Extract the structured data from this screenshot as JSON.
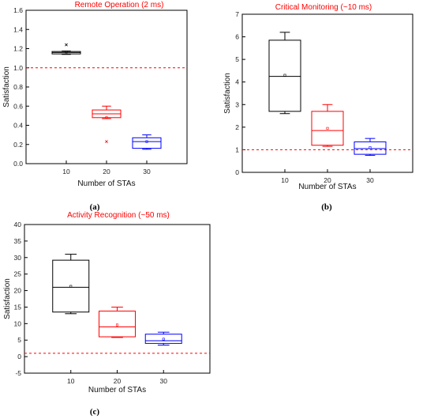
{
  "chart_data": [
    {
      "type": "box",
      "panel_label": "(a)",
      "title": "Remote Operation (2 ms)",
      "xlabel": "Number of STAs",
      "ylabel": "Satisfaction",
      "ylim": [
        0,
        1.6
      ],
      "yticks": [
        "0.0",
        "0.2",
        "0.4",
        "0.6",
        "0.8",
        "1.0",
        "1.2",
        "1.4",
        "1.6"
      ],
      "reference_line": 1.0,
      "grid": false,
      "colors": {
        "title": "#ff0000",
        "reference": "#ff0000"
      },
      "series": [
        {
          "x": "10",
          "color": "#000000",
          "whisker_low": 1.14,
          "q1": 1.145,
          "median": 1.16,
          "q3": 1.17,
          "whisker_high": 1.175,
          "mean": 1.165,
          "outliers": [
            1.24
          ]
        },
        {
          "x": "20",
          "color": "#ff0000",
          "whisker_low": 0.47,
          "q1": 0.48,
          "median": 0.52,
          "q3": 0.56,
          "whisker_high": 0.6,
          "mean": 0.48,
          "outliers": [
            0.23
          ]
        },
        {
          "x": "30",
          "color": "#0000ff",
          "whisker_low": 0.15,
          "q1": 0.16,
          "median": 0.23,
          "q3": 0.27,
          "whisker_high": 0.3,
          "mean": 0.23,
          "outliers": []
        }
      ]
    },
    {
      "type": "box",
      "panel_label": "(b)",
      "title": "Critical Monitoring (~10 ms)",
      "xlabel": "Number of STAs",
      "ylabel": "Satisfaction",
      "ylim": [
        0,
        7
      ],
      "yticks": [
        "0",
        "1",
        "2",
        "3",
        "4",
        "5",
        "6",
        "7"
      ],
      "reference_line": 1.0,
      "grid": false,
      "colors": {
        "title": "#ff0000",
        "reference": "#ff0000"
      },
      "series": [
        {
          "x": "10",
          "color": "#000000",
          "whisker_low": 2.6,
          "q1": 2.7,
          "median": 4.25,
          "q3": 5.85,
          "whisker_high": 6.2,
          "mean": 4.3,
          "outliers": []
        },
        {
          "x": "20",
          "color": "#ff0000",
          "whisker_low": 1.15,
          "q1": 1.2,
          "median": 1.85,
          "q3": 2.7,
          "whisker_high": 3.0,
          "mean": 1.95,
          "outliers": []
        },
        {
          "x": "30",
          "color": "#0000ff",
          "whisker_low": 0.75,
          "q1": 0.8,
          "median": 1.05,
          "q3": 1.35,
          "whisker_high": 1.5,
          "mean": 1.1,
          "outliers": []
        }
      ]
    },
    {
      "type": "box",
      "panel_label": "(c)",
      "title": "Activity Recognition (~50 ms)",
      "xlabel": "Number of STAs",
      "ylabel": "Satisfaction",
      "ylim": [
        -5,
        40
      ],
      "yticks": [
        "-5",
        "0",
        "5",
        "10",
        "15",
        "20",
        "25",
        "30",
        "35",
        "40"
      ],
      "reference_line": 1.0,
      "grid": false,
      "colors": {
        "title": "#ff0000",
        "reference": "#ff0000"
      },
      "series": [
        {
          "x": "10",
          "color": "#000000",
          "whisker_low": 13.0,
          "q1": 13.5,
          "median": 21.0,
          "q3": 29.2,
          "whisker_high": 31.0,
          "mean": 21.3,
          "outliers": []
        },
        {
          "x": "20",
          "color": "#ff0000",
          "whisker_low": 5.8,
          "q1": 6.0,
          "median": 9.0,
          "q3": 13.8,
          "whisker_high": 15.0,
          "mean": 9.6,
          "outliers": []
        },
        {
          "x": "30",
          "color": "#0000ff",
          "whisker_low": 3.5,
          "q1": 4.0,
          "median": 4.8,
          "q3": 6.8,
          "whisker_high": 7.4,
          "mean": 5.3,
          "outliers": []
        }
      ]
    }
  ]
}
